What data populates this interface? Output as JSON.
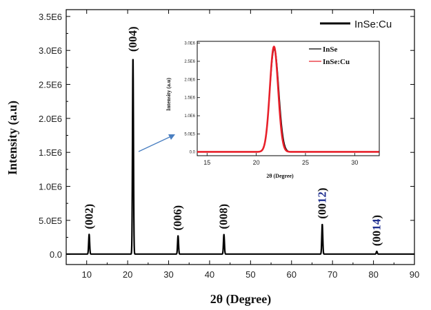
{
  "chart_data": [
    {
      "type": "line",
      "xlabel": "2θ (Degree)",
      "ylabel": "Intensity (a.u)",
      "xlim": [
        5,
        90
      ],
      "ylim": [
        -0.15,
        3.6
      ],
      "x_ticks": [
        "10",
        "20",
        "30",
        "40",
        "50",
        "60",
        "70",
        "80",
        "90"
      ],
      "x_tick_values": [
        10,
        20,
        30,
        40,
        50,
        60,
        70,
        80,
        90
      ],
      "y_ticks": [
        "0.0",
        "5.0E5",
        "1.0E6",
        "1.5E6",
        "2.0E6",
        "2.5E6",
        "3.0E6",
        "3.5E6"
      ],
      "y_tick_values": [
        0,
        0.5,
        1.0,
        1.5,
        2.0,
        2.5,
        3.0,
        3.5
      ],
      "y_unit_scale": 1000000,
      "legend_position": "top-right",
      "series": [
        {
          "name": "InSe:Cu",
          "color": "#000000",
          "peaks": [
            {
              "x": 10.6,
              "y": 0.29,
              "label": "(002)"
            },
            {
              "x": 21.3,
              "y": 2.9,
              "label": "(004)"
            },
            {
              "x": 32.3,
              "y": 0.27,
              "label": "(006)"
            },
            {
              "x": 43.5,
              "y": 0.29,
              "label": "(008)"
            },
            {
              "x": 67.5,
              "y": 0.44,
              "label": "(0012)"
            },
            {
              "x": 80.8,
              "y": 0.04,
              "label": "(0014)"
            }
          ]
        }
      ],
      "peak_label_color_blue": "#1f2f8f",
      "arrow_color": "#4a7fc1"
    },
    {
      "type": "line",
      "xlabel": "2θ (Degree)",
      "ylabel": "Intensity (a.u)",
      "xlim": [
        14,
        32.5
      ],
      "ylim": [
        -0.1,
        3.05
      ],
      "x_ticks": [
        "15",
        "20",
        "25",
        "30"
      ],
      "x_tick_values": [
        15,
        20,
        25,
        30
      ],
      "y_ticks": [
        "0.0",
        "5.0E5",
        "1.0E6",
        "1.5E6",
        "2.0E6",
        "2.5E6",
        "3.0E6"
      ],
      "y_tick_values": [
        0,
        0.5,
        1.0,
        1.5,
        2.0,
        2.5,
        3.0
      ],
      "legend_position": "top-right",
      "series": [
        {
          "name": "InSe",
          "color": "#000000",
          "center": 21.85,
          "height": 2.85,
          "sigma": 0.45
        },
        {
          "name": "InSe:Cu",
          "color": "#e8202a",
          "center": 21.8,
          "height": 2.9,
          "sigma": 0.42
        }
      ]
    }
  ]
}
